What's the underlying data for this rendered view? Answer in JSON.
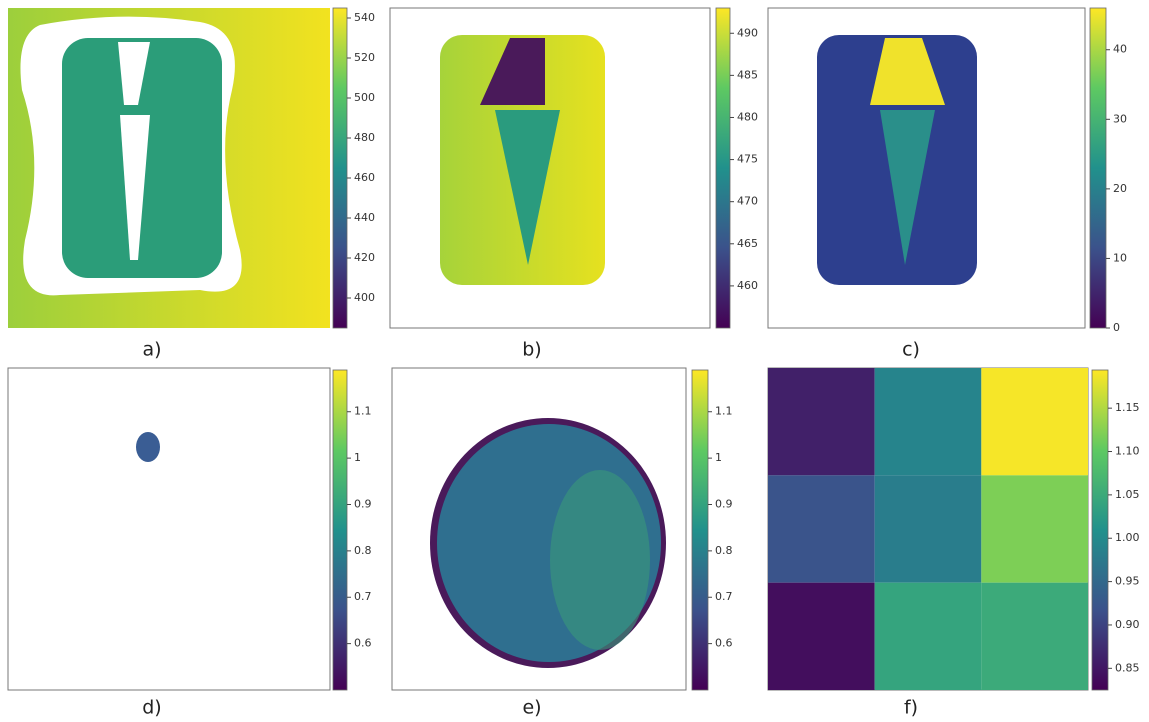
{
  "chart_data": [
    {
      "type": "image",
      "label": "a)",
      "clim": [
        385,
        545
      ],
      "cticks": [
        400,
        420,
        440,
        460,
        480,
        500,
        520,
        540
      ]
    },
    {
      "type": "image",
      "label": "b)",
      "clim": [
        455,
        493
      ],
      "cticks": [
        460,
        465,
        470,
        475,
        480,
        485,
        490
      ]
    },
    {
      "type": "image",
      "label": "c)",
      "clim": [
        0,
        46
      ],
      "cticks": [
        0,
        10,
        20,
        30,
        40
      ]
    },
    {
      "type": "image",
      "label": "d)",
      "clim": [
        0.5,
        1.19
      ],
      "cticks": [
        0.6,
        0.7,
        0.8,
        0.9,
        1.0,
        1.1
      ]
    },
    {
      "type": "image",
      "label": "e)",
      "clim": [
        0.5,
        1.19
      ],
      "cticks": [
        0.6,
        0.7,
        0.8,
        0.9,
        1.0,
        1.1
      ]
    },
    {
      "type": "heatmap",
      "label": "f)",
      "clim": [
        0.825,
        1.194
      ],
      "values": [
        [
          0.86,
          0.99,
          1.19
        ],
        [
          0.92,
          0.98,
          1.12
        ],
        [
          0.84,
          1.04,
          1.05
        ]
      ],
      "cticks": [
        0.85,
        {
          "value": 0.9,
          "label": "0.90"
        },
        0.95,
        {
          "value": 1.0,
          "label": "1.00"
        },
        1.05,
        {
          "value": 1.1,
          "label": "1.10"
        },
        1.15
      ]
    }
  ]
}
